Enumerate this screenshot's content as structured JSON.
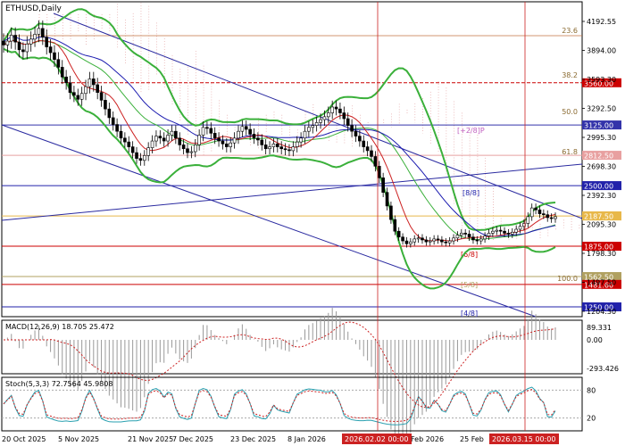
{
  "chart_data": [
    {
      "type": "candlestick",
      "symbol_label": "ETHUSD,Daily",
      "price_scale": {
        "min": 1204.3,
        "max": 4192.55,
        "labels": [
          "4192.55",
          "3894.00",
          "3593.30",
          "3292.50",
          "2995.30",
          "2698.30",
          "2392.30",
          "2095.30",
          "1798.30",
          "1497.50",
          "1204.30"
        ]
      },
      "x_labels": [
        "20 Oct 2025",
        "5 Nov 2025",
        "21 Nov 2025",
        "7 Dec 2025",
        "23 Dec 2025",
        "8 Jan 2026",
        "Feb 2026",
        "25 Feb"
      ],
      "highlight_labels": [
        "2026.02.02 00:00",
        "2026.03.15 00:00"
      ],
      "horizontal_levels": [
        {
          "price": 3560.0,
          "label": "3560.00",
          "color": "#cc0000",
          "style": "dashed"
        },
        {
          "price": 3125.0,
          "label": "3125.00",
          "color": "#3333aa",
          "style": "solid"
        },
        {
          "price": 2812.5,
          "label": "2812.50",
          "color": "#e8a0a0",
          "style": "solid"
        },
        {
          "price": 2500.0,
          "label": "2500.00",
          "color": "#2222aa",
          "style": "solid"
        },
        {
          "price": 2187.5,
          "label": "2187.50",
          "color": "#e8b84a",
          "style": "solid"
        },
        {
          "price": 1875.0,
          "label": "1875.00",
          "color": "#cc0000",
          "style": "solid"
        },
        {
          "price": 1562.5,
          "label": "1562.50",
          "color": "#b0a060",
          "style": "solid"
        },
        {
          "price": 1481.6,
          "label": "1481.60",
          "color": "#cc0000",
          "style": "solid"
        },
        {
          "price": 1250.0,
          "label": "1250.00",
          "color": "#2222aa",
          "style": "solid"
        }
      ],
      "current_price": {
        "price": 2187.5,
        "label": "2187.50"
      },
      "fibonacci_labels": [
        "23.6",
        "38.2",
        "50.0",
        "61.8",
        "100.0"
      ],
      "murrey_labels": [
        "[+2/8]P",
        "[8/8]",
        "[6/8]",
        "[5/8]",
        "[4/8]"
      ],
      "close_series": [
        3950,
        3990,
        4050,
        3980,
        3900,
        3880,
        3960,
        4010,
        4060,
        4120,
        4030,
        3930,
        3870,
        3800,
        3720,
        3620,
        3560,
        3460,
        3430,
        3390,
        3450,
        3520,
        3600,
        3540,
        3460,
        3380,
        3290,
        3200,
        3130,
        3060,
        2990,
        2950,
        2900,
        2840,
        2780,
        2760,
        2810,
        2890,
        2960,
        3010,
        2990,
        2960,
        3020,
        3060,
        2990,
        2920,
        2880,
        2840,
        2850,
        2920,
        3020,
        3100,
        3090,
        3040,
        2990,
        2960,
        2930,
        2900,
        2940,
        2990,
        3060,
        3110,
        3080,
        3030,
        2990,
        2970,
        2920,
        2880,
        2900,
        2930,
        2900,
        2880,
        2870,
        2860,
        2900,
        2950,
        2990,
        3060,
        3100,
        3120,
        3150,
        3180,
        3210,
        3250,
        3310,
        3290,
        3250,
        3190,
        3120,
        3060,
        3010,
        2960,
        2900,
        2860,
        2800,
        2700,
        2580,
        2430,
        2290,
        2150,
        2030,
        1970,
        1930,
        1900,
        1920,
        1950,
        1960,
        1940,
        1920,
        1930,
        1950,
        1940,
        1920,
        1910,
        1930,
        1960,
        1990,
        2010,
        2000,
        1970,
        1940,
        1930,
        1950,
        1980,
        2010,
        2030,
        2040,
        2030,
        2010,
        2000,
        2020,
        2050,
        2080,
        2110,
        2180,
        2270,
        2250,
        2210,
        2200,
        2170,
        2160,
        2180
      ],
      "indicators": [
        {
          "name": "MACD(12,26,9)",
          "values_label": "18.705 25.472",
          "scale": [
            "89.331",
            "0.00",
            "-293.426"
          ]
        },
        {
          "name": "Stoch(5,3,3)",
          "values_label": "72.7564 45.9808",
          "scale": [
            "80",
            "20"
          ]
        }
      ]
    }
  ]
}
